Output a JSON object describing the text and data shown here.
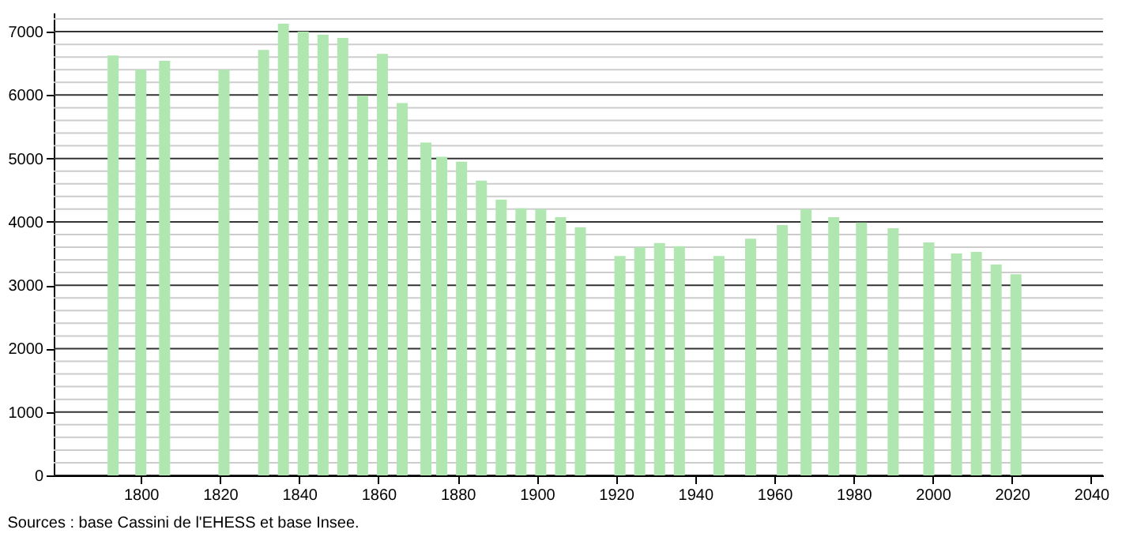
{
  "chart_data": {
    "type": "bar",
    "color": "#b0e6b0",
    "x": [
      1793,
      1800,
      1806,
      1821,
      1831,
      1836,
      1841,
      1846,
      1851,
      1856,
      1861,
      1866,
      1872,
      1876,
      1881,
      1886,
      1891,
      1896,
      1901,
      1906,
      1911,
      1921,
      1926,
      1931,
      1936,
      1946,
      1954,
      1962,
      1968,
      1975,
      1982,
      1990,
      1999,
      2006,
      2011,
      2016,
      2021
    ],
    "values": [
      6625,
      6400,
      6540,
      6400,
      6710,
      7125,
      7000,
      6950,
      6900,
      5990,
      6650,
      5875,
      5250,
      5025,
      4950,
      4650,
      4350,
      4215,
      4200,
      4075,
      3915,
      3460,
      3600,
      3665,
      3615,
      3460,
      3735,
      3950,
      4200,
      4075,
      3990,
      3900,
      3675,
      3500,
      3525,
      3325,
      3175
    ],
    "xlim": [
      1778,
      2043
    ],
    "xticks": [
      1800,
      1820,
      1840,
      1860,
      1880,
      1900,
      1920,
      1940,
      1960,
      1980,
      2000,
      2020,
      2040
    ],
    "ylim": [
      0,
      7300
    ],
    "yticks": [
      0,
      1000,
      2000,
      3000,
      4000,
      5000,
      6000,
      7000
    ],
    "grid": "y",
    "annotations": [
      "Sources : base Cassini de l'EHESS et base Insee."
    ]
  }
}
